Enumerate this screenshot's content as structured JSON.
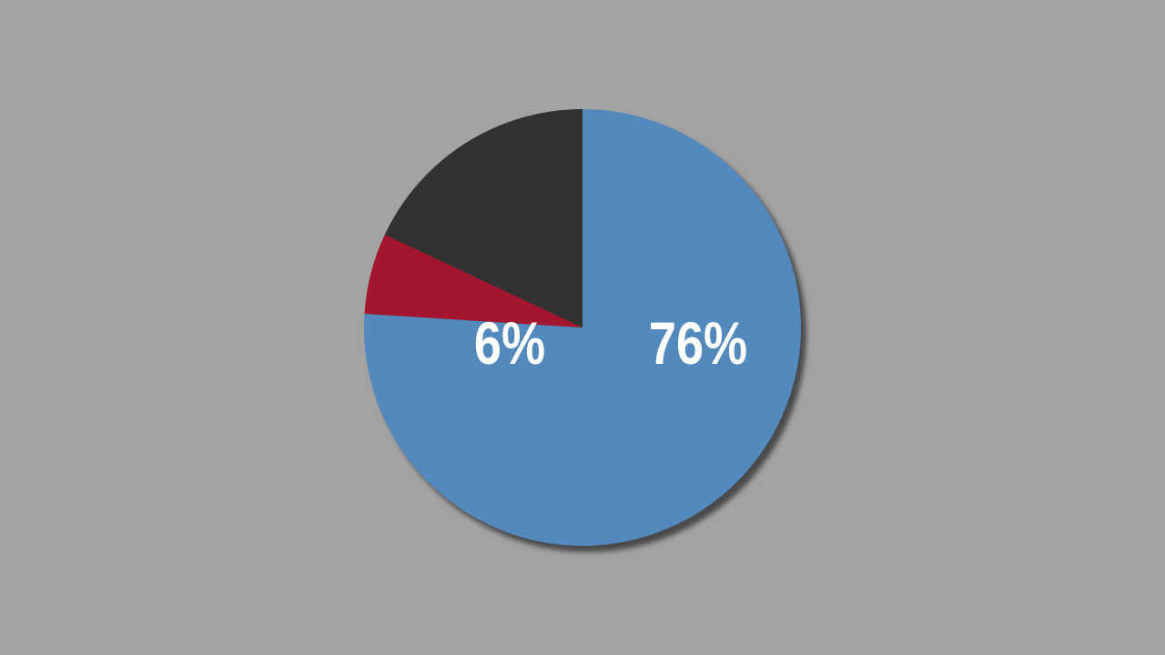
{
  "chart_data": {
    "type": "pie",
    "start": "top",
    "direction": "clockwise",
    "slices": [
      {
        "value": 76,
        "label": "76%",
        "color": "#5389bd"
      },
      {
        "value": 6,
        "label": "6%",
        "color": "#a4162f"
      },
      {
        "value": 18,
        "label": "",
        "color": "#323232"
      }
    ],
    "background": "#a3a3a3",
    "shadow_color": "#4a4a4a"
  }
}
